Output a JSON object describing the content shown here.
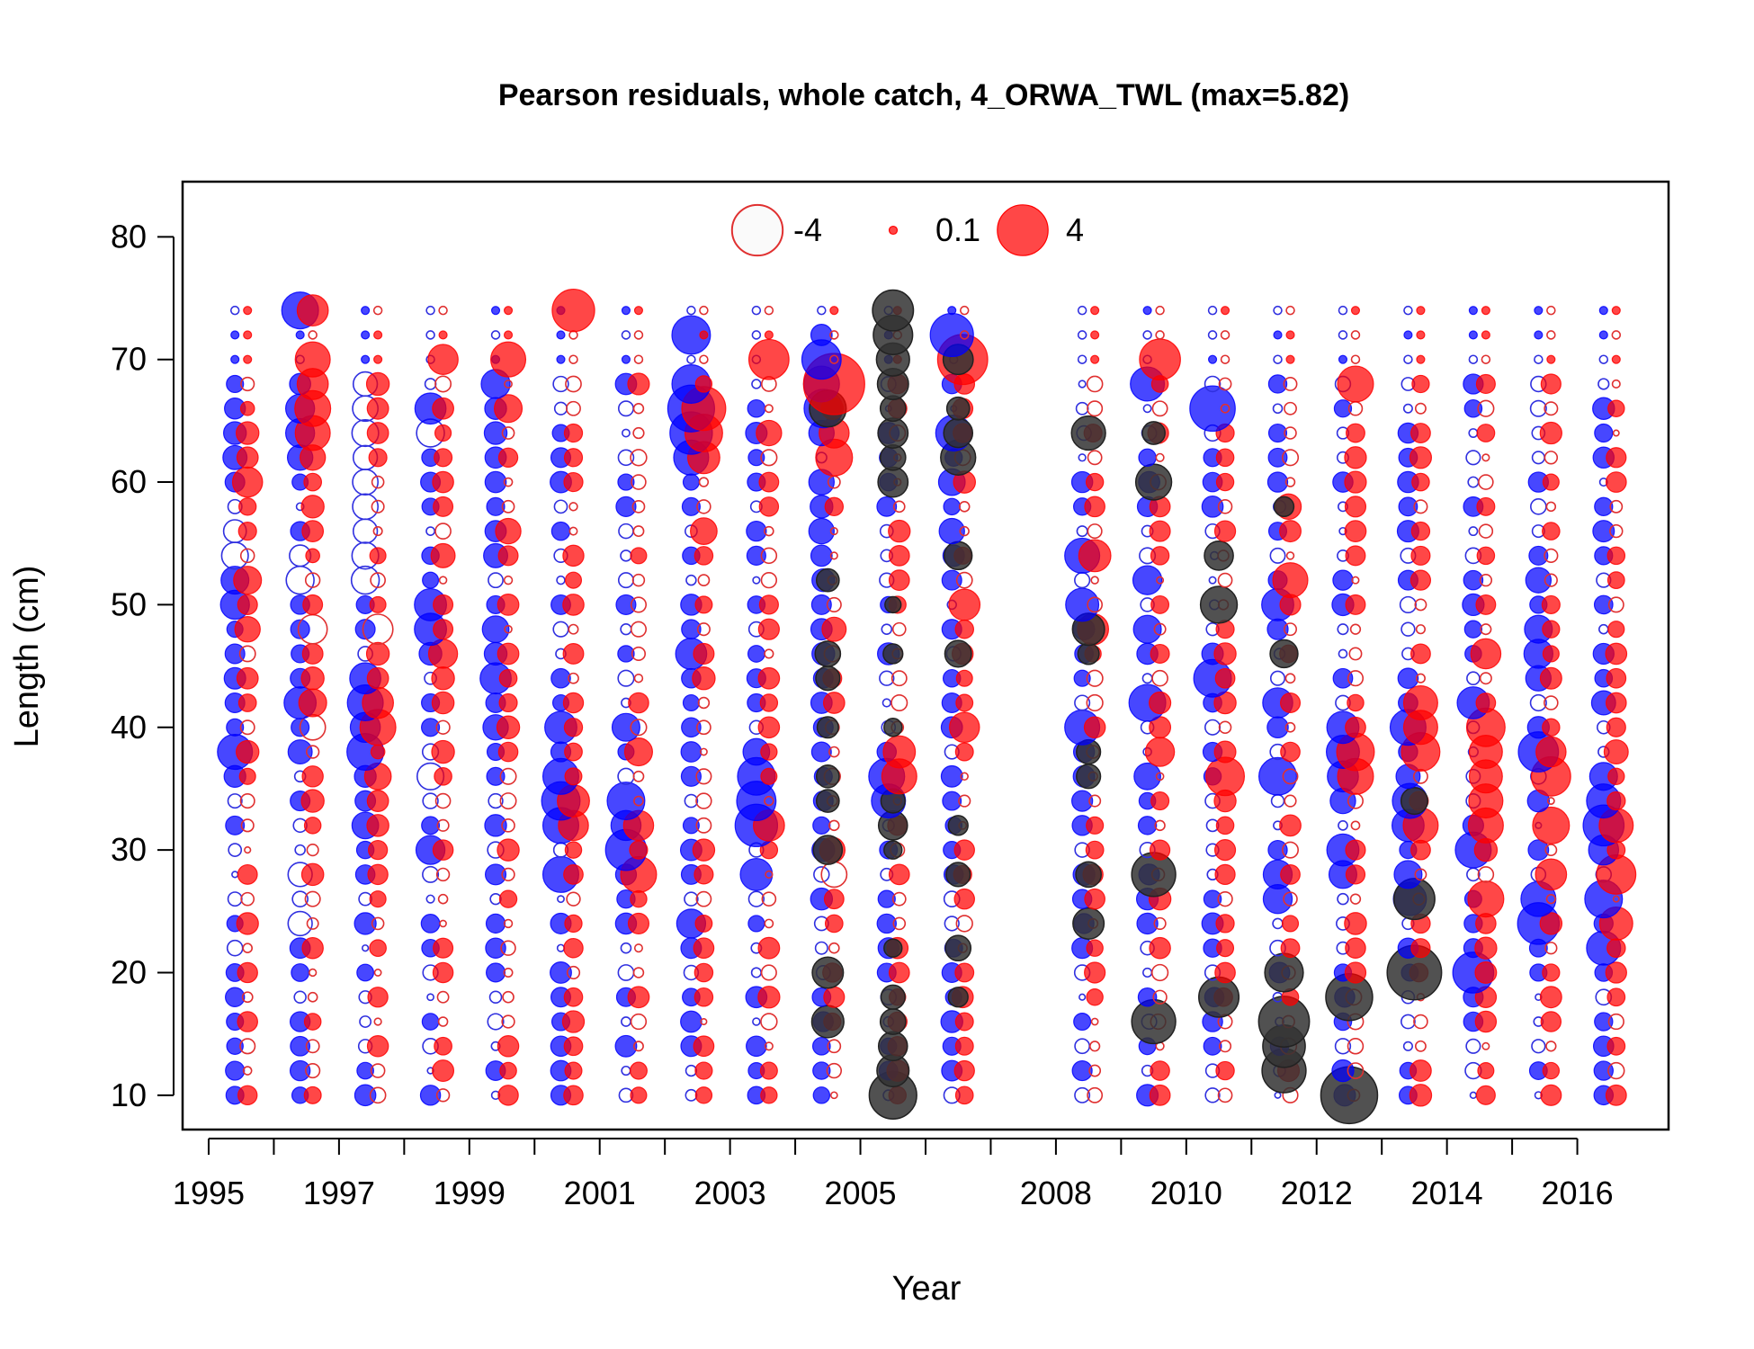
{
  "chart_data": {
    "type": "scatter",
    "subtype": "bubble",
    "title": "Pearson residuals, whole catch, 4_ORWA_TWL (max=5.82)",
    "xlabel": "Year",
    "ylabel": "Length (cm)",
    "xlim": [
      1994.6,
      2017.4
    ],
    "ylim": [
      7.2,
      84.5
    ],
    "x_ticks": [
      1995,
      1996,
      1997,
      1998,
      1999,
      2000,
      2001,
      2002,
      2003,
      2004,
      2005,
      2006,
      2007,
      2008,
      2009,
      2010,
      2011,
      2012,
      2013,
      2014,
      2015,
      2016
    ],
    "x_tick_labels": [
      "1995",
      "1997",
      "1999",
      "2001",
      "2003",
      "2005",
      "2008",
      "2010",
      "2012",
      "2014",
      "2016"
    ],
    "y_ticks": [
      10,
      20,
      30,
      40,
      50,
      60,
      70,
      80
    ],
    "y_tick_labels": [
      "10",
      "20",
      "30",
      "40",
      "50",
      "60",
      "70",
      "80"
    ],
    "grid": false,
    "legend": {
      "placement": "top-center",
      "entries": [
        {
          "label": "-4",
          "value": -4
        },
        {
          "label": "0.1",
          "value": 0.1
        },
        {
          "label": "4",
          "value": 4
        }
      ]
    },
    "colors": {
      "female_positive": "#ff0000",
      "male_positive": "#0000ff",
      "shared": "#333333",
      "female_negative": "#e03030",
      "male_negative": "#3030e0"
    },
    "bins": {
      "min": 10,
      "max": 74,
      "step": 2
    },
    "series": [
      {
        "year": 1995,
        "female": {
          "34": -0.3,
          "38": 0.8,
          "44": 0.7,
          "48": 1.0,
          "52": 1.2,
          "56": 0.5,
          "60": 1.4,
          "62": 0.7,
          "64": 0.8,
          "66": 0.3
        },
        "male": {
          "38": 1.9,
          "42": 0.6,
          "46": 0.6,
          "48": 0.4,
          "50": 1.3,
          "52": 1.2,
          "54": -1.1,
          "56": -0.8,
          "60": 0.6,
          "62": 0.9,
          "64": 0.8
        }
      },
      {
        "year": 1996,
        "female": {
          "34": 0.8,
          "40": -1.0,
          "42": 1.2,
          "44": 0.8,
          "48": -1.3,
          "54": 0.3,
          "58": 0.8,
          "62": 1.0,
          "64": 1.9,
          "66": 2.0,
          "68": 1.5,
          "70": 1.9,
          "74": 1.5
        },
        "male": {
          "24": -0.9,
          "28": -0.9,
          "38": 0.9,
          "40": 0.5,
          "42": 1.6,
          "44": 0.6,
          "46": 0.5,
          "52": -1.2,
          "54": -0.7,
          "60": 0.4,
          "62": 1.0,
          "64": 1.3,
          "66": 1.3,
          "74": 2.1
        }
      },
      {
        "year": 1997,
        "female": {
          "34": 0.7,
          "36": 1.1,
          "38": 0.3,
          "40": 2.0,
          "42": 1.5,
          "44": 0.7,
          "46": 0.8,
          "48": -1.4,
          "50": 0.4,
          "54": 0.4,
          "62": 0.5,
          "64": 0.7,
          "68": 0.8
        },
        "male": {
          "32": 1.1,
          "38": 2.1,
          "40": 1.4,
          "42": 2.0,
          "44": 1.5,
          "48": 0.6,
          "50": 0.5,
          "52": -1.2,
          "54": -1.1,
          "56": -0.9,
          "58": -1.0,
          "60": -1.0,
          "62": -0.9,
          "64": -1.1,
          "66": -1.0,
          "68": -0.9
        }
      },
      {
        "year": 1998,
        "female": {
          "38": 0.8,
          "44": 0.8,
          "46": 1.3,
          "50": 0.6,
          "54": 0.9,
          "58": 0.6,
          "62": 0.5,
          "66": 0.7,
          "70": 1.4
        },
        "male": {
          "30": 1.3,
          "36": -1.1,
          "40": 0.5,
          "42": 0.5,
          "46": 0.8,
          "48": 1.6,
          "50": 1.6,
          "52": 0.4,
          "60": 0.6,
          "64": -1.2,
          "66": 1.5
        }
      },
      {
        "year": 1999,
        "female": {
          "40": 0.8,
          "42": 0.5,
          "46": 0.7,
          "50": 0.7,
          "54": 0.6,
          "56": 1.0,
          "66": 1.2,
          "70": 1.9
        },
        "male": {
          "40": 1.0,
          "42": 0.6,
          "44": 1.5,
          "46": 0.8,
          "48": 1.1,
          "50": 0.5,
          "54": 0.9,
          "56": 0.7,
          "58": 0.5,
          "62": 0.7,
          "64": 0.8,
          "68": 1.3
        }
      },
      {
        "year": 2000,
        "female": {
          "32": 1.4,
          "34": 1.6,
          "74": 2.8
        },
        "male": {
          "28": 2.0,
          "32": 2.0,
          "34": 2.3,
          "36": 2.0,
          "40": 1.6,
          "42": 0.4
        }
      },
      {
        "year": 2001,
        "female": {
          "28": 2.0,
          "32": 1.4,
          "38": 1.2,
          "54": 0.4
        },
        "male": {
          "30": 2.6,
          "32": 1.4,
          "34": 2.2,
          "40": 1.2,
          "38": 0.4
        }
      },
      {
        "year": 2002,
        "female": {
          "44": 0.8,
          "56": 1.1,
          "62": 1.6,
          "64": 2.2,
          "66": 3.0
        },
        "male": {
          "24": 1.3,
          "28": 0.6,
          "32": 0.4,
          "46": 1.5,
          "58": 0.5,
          "60": 0.4,
          "62": 1.9,
          "64": 2.8,
          "66": 3.4,
          "68": 2.3,
          "72": 2.3,
          "42": 0.4
        }
      },
      {
        "year": 2003,
        "female": {
          "32": 1.5,
          "64": 1.0,
          "70": 2.5,
          "36": 0.4
        },
        "male": {
          "28": 1.6,
          "32": 2.8,
          "34": 2.4,
          "36": 2.2,
          "38": 1.1,
          "60": 0.5,
          "62": 0.4
        }
      },
      {
        "year": 2004,
        "female": {
          "28": -1.0,
          "30": 1.0,
          "48": 0.9,
          "62": 2.1,
          "64": 1.4,
          "68": 5.82
        },
        "male": {
          "30": 0.8,
          "34": 0.6,
          "36": 0.5,
          "38": 0.6,
          "40": 0.6,
          "42": 0.7,
          "44": 0.6,
          "46": 0.8,
          "48": 0.7,
          "50": 0.6,
          "52": 0.8,
          "54": 0.7,
          "56": 1.0,
          "58": 0.8,
          "60": 1.0,
          "64": 1.0,
          "66": 2.3,
          "68": 2.0,
          "70": 2.4,
          "72": 0.7
        },
        "shared": {
          "16": 1.6,
          "20": 1.5,
          "30": 1.3,
          "34": 0.8,
          "36": 0.8,
          "40": 0.7,
          "44": 0.9,
          "46": 1.0,
          "52": 0.8,
          "66": 2.1
        }
      },
      {
        "year": 2005,
        "female": {
          "36": 1.9,
          "38": 1.6
        },
        "male": {
          "34": 1.8,
          "36": 2.0
        },
        "shared": {
          "10": 3.5,
          "12": 1.6,
          "14": 1.3,
          "16": 1.0,
          "18": 0.9,
          "22": 0.5,
          "30": 0.5,
          "32": 1.3,
          "34": 0.9,
          "40": 0.5,
          "46": 0.6,
          "50": 0.4,
          "60": -1.4,
          "62": 1.0,
          "64": 1.4,
          "66": 1.0,
          "68": 1.5,
          "70": 1.7,
          "72": 2.4,
          "74": 2.6
        }
      },
      {
        "year": 2006,
        "female": {
          "40": 1.4,
          "50": 1.5,
          "70": 3.9
        },
        "male": {
          "20": 0.6,
          "40": 0.7,
          "42": 0.6,
          "48": 0.6,
          "52": 0.6,
          "56": 1.0,
          "60": 1.1,
          "64": 2.0,
          "72": 2.9
        },
        "shared": {
          "18": 0.6,
          "22": 1.0,
          "28": 0.9,
          "32": 0.6,
          "46": 1.1,
          "54": 1.2,
          "62": 1.9,
          "64": 1.3,
          "66": 0.8,
          "70": 1.4
        }
      },
      {
        "year": 2008,
        "female": {
          "48": 1.5,
          "54": 1.6
        },
        "male": {
          "40": 1.9,
          "50": 1.7,
          "54": 1.9,
          "48": 0.7
        },
        "shared": {
          "24": 1.5,
          "28": 1.0,
          "36": 0.9,
          "38": 0.9,
          "46": 0.7,
          "48": 1.6,
          "64": 1.8
        }
      },
      {
        "year": 2009,
        "female": {
          "38": 1.3,
          "70": 2.6
        },
        "male": {
          "36": 1.1,
          "42": 2.1,
          "48": 1.2,
          "52": 1.3,
          "68": 1.8
        },
        "shared": {
          "16": 3.0,
          "28": 3.0,
          "60": 2.0,
          "64": 0.8
        }
      },
      {
        "year": 2010,
        "female": {
          "36": 2.3
        },
        "male": {
          "44": 2.2,
          "66": 3.2
        },
        "shared": {
          "18": 2.5,
          "50": 2.1,
          "54": 1.3
        }
      },
      {
        "year": 2011,
        "female": {
          "32": 0.7,
          "42": 0.6,
          "52": 1.9,
          "58": 1.0
        },
        "male": {
          "26": 1.3,
          "28": 1.3,
          "36": 2.2,
          "42": 1.4,
          "50": 1.6
        },
        "shared": {
          "12": 3.0,
          "14": 2.8,
          "16": 4.0,
          "20": 2.3,
          "46": 1.2,
          "58": 0.6
        }
      },
      {
        "year": 2012,
        "female": {
          "36": 2.0,
          "38": 2.2,
          "68": 2.0
        },
        "male": {
          "28": 1.2,
          "30": 1.6,
          "34": 1.0,
          "36": 1.5,
          "38": 1.7,
          "40": 1.6
        },
        "shared": {
          "10": 5.0,
          "18": 3.4
        }
      },
      {
        "year": 2013,
        "female": {
          "32": 1.9,
          "38": 2.3,
          "40": 1.8,
          "42": 1.8
        },
        "male": {
          "26": 1.7,
          "28": 1.2,
          "32": 1.6,
          "34": 1.9,
          "36": 0.9,
          "40": 2.0
        },
        "shared": {
          "20": 4.6,
          "26": 2.6,
          "34": 1.1
        }
      },
      {
        "year": 2014,
        "female": {
          "26": 2.0,
          "30": 0.8,
          "32": 1.9,
          "34": 1.8,
          "36": 1.7,
          "38": 1.7,
          "40": 2.3,
          "46": 1.4
        },
        "male": {
          "20": 2.6,
          "30": 2.0,
          "42": 1.6
        }
      },
      {
        "year": 2015,
        "female": {
          "28": 1.5,
          "32": 2.1,
          "36": 2.4,
          "38": 1.4
        },
        "male": {
          "24": 2.7,
          "26": 1.9,
          "38": 2.5,
          "44": 1.0,
          "46": 1.3,
          "48": 1.2,
          "52": 1.0
        }
      },
      {
        "year": 2016,
        "female": {
          "24": 1.7,
          "28": 2.4,
          "32": 1.8,
          "38": 0.9
        },
        "male": {
          "22": 1.8,
          "26": 2.2,
          "30": 1.4,
          "32": 2.6,
          "34": 1.8,
          "36": 1.2,
          "42": 0.9
        }
      }
    ]
  }
}
